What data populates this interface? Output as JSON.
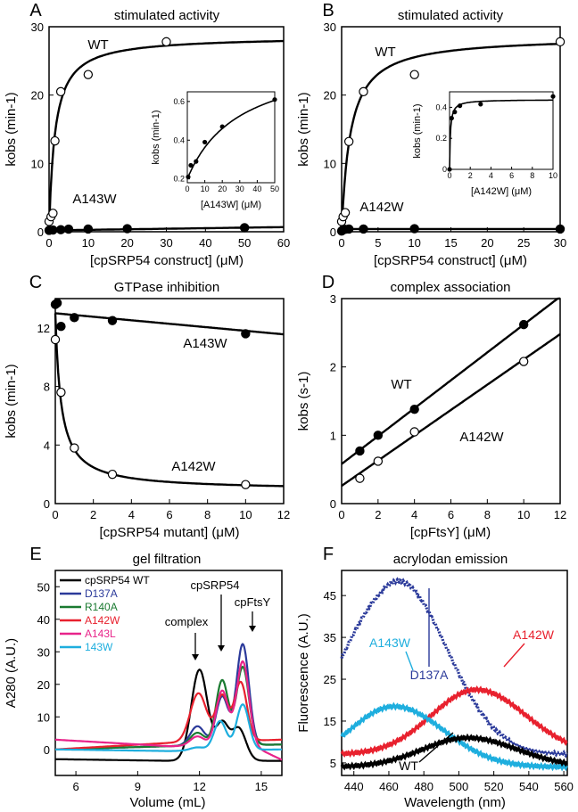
{
  "chart_data": [
    {
      "panel": "A",
      "type": "scatter",
      "title": "stimulated activity",
      "xlabel": "[cpSRP54 construct] (μM)",
      "ylabel": "kobs (min-1)",
      "xlim": [
        0,
        60
      ],
      "ylim": [
        0,
        30
      ],
      "xticks": [
        0,
        10,
        20,
        30,
        40,
        50,
        60
      ],
      "yticks": [
        0,
        10,
        20,
        30
      ],
      "annotations": [
        "WT",
        "A143W"
      ],
      "series": [
        {
          "name": "WT",
          "marker": "open",
          "x": [
            0,
            0.5,
            1,
            1.5,
            3,
            10,
            30
          ],
          "y": [
            1.5,
            2.2,
            2.7,
            13.3,
            20.5,
            23,
            27.8
          ],
          "fit": {
            "model": "hyperbolic",
            "kmax": 28.6,
            "km": 1.5
          }
        },
        {
          "name": "A143W",
          "marker": "filled",
          "x": [
            0,
            1,
            3,
            5,
            10,
            20,
            50
          ],
          "y": [
            0.2,
            0.25,
            0.3,
            0.38,
            0.4,
            0.45,
            0.6
          ],
          "fit": {
            "model": "linear",
            "b": 0.2,
            "m": 0.008
          }
        }
      ],
      "inset": {
        "xlabel": "[A143W] (μM)",
        "ylabel": "kobs (min-1)",
        "xlim": [
          0,
          50
        ],
        "ylim": [
          0.18,
          0.65
        ],
        "xticks": [
          0,
          10,
          20,
          30,
          40,
          50
        ],
        "yticks": [
          0.2,
          0.4,
          0.6
        ],
        "x": [
          0.5,
          2,
          5,
          10,
          20,
          50
        ],
        "y": [
          0.21,
          0.27,
          0.29,
          0.39,
          0.47,
          0.61
        ],
        "fit": {
          "model": "hyperbolic_offset",
          "b": 0.2,
          "kmax": 0.65,
          "km": 30
        }
      }
    },
    {
      "panel": "B",
      "type": "scatter",
      "title": "stimulated activity",
      "xlabel": "[cpSRP54 construct] (μM)",
      "ylabel": "kobs (min-1)",
      "xlim": [
        0,
        30
      ],
      "ylim": [
        0,
        30
      ],
      "xticks": [
        0,
        5,
        10,
        15,
        20,
        25,
        30
      ],
      "yticks": [
        0,
        10,
        20,
        30
      ],
      "annotations": [
        "WT",
        "A142W"
      ],
      "series": [
        {
          "name": "WT",
          "marker": "open",
          "x": [
            0,
            0.2,
            0.5,
            1,
            3,
            10,
            30
          ],
          "y": [
            1.5,
            2.2,
            2.8,
            13.2,
            20.5,
            23,
            27.8
          ],
          "fit": {
            "model": "hyperbolic",
            "kmax": 28.6,
            "km": 1.2
          }
        },
        {
          "name": "A142W",
          "marker": "filled",
          "x": [
            0,
            0.2,
            0.5,
            1,
            3,
            10,
            30
          ],
          "y": [
            0.1,
            0.3,
            0.35,
            0.4,
            0.4,
            0.45,
            0.4
          ],
          "fit": {
            "model": "flat",
            "b": 0.4
          }
        }
      ],
      "inset": {
        "xlabel": "[A142W] (μM)",
        "ylabel": "kobs (min-1)",
        "xlim": [
          0,
          10
        ],
        "ylim": [
          0,
          0.5
        ],
        "xticks": [
          0,
          2,
          4,
          6,
          8,
          10
        ],
        "yticks": [
          0,
          0.2,
          0.4
        ],
        "x": [
          0,
          0.2,
          0.5,
          1,
          3,
          10
        ],
        "y": [
          0.0,
          0.33,
          0.37,
          0.41,
          0.42,
          0.47
        ],
        "fit": {
          "model": "hyperbolic",
          "kmax": 0.45,
          "km": 0.08
        }
      }
    },
    {
      "panel": "C",
      "type": "scatter",
      "title": "GTPase inhibition",
      "xlabel": "[cpSRP54 mutant] (μM)",
      "ylabel": "kobs (min-1)",
      "xlim": [
        0,
        12
      ],
      "ylim": [
        0,
        14
      ],
      "xticks": [
        0,
        2,
        4,
        6,
        8,
        10,
        12
      ],
      "yticks": [
        0,
        4,
        8,
        12
      ],
      "annotations": [
        "A143W",
        "A142W"
      ],
      "series": [
        {
          "name": "A143W",
          "marker": "filled",
          "x": [
            0,
            0.1,
            0.3,
            1,
            3,
            10
          ],
          "y": [
            13.6,
            13.7,
            12.1,
            12.7,
            12.5,
            11.6
          ],
          "fit": {
            "model": "linear",
            "b": 13,
            "m": -0.12
          }
        },
        {
          "name": "A142W",
          "marker": "open",
          "x": [
            0,
            0.3,
            1,
            3,
            10
          ],
          "y": [
            11.2,
            7.6,
            3.8,
            2.0,
            1.3
          ],
          "fit": {
            "model": "inhibition",
            "k0": 13,
            "kinf": 0.9,
            "ki": 0.3
          }
        }
      ]
    },
    {
      "panel": "D",
      "type": "scatter",
      "title": "complex association",
      "xlabel": "[cpFtsY] (μM)",
      "ylabel": "kobs (s-1)",
      "xlim": [
        0,
        12
      ],
      "ylim": [
        0,
        3
      ],
      "xticks": [
        0,
        2,
        4,
        6,
        8,
        10,
        12
      ],
      "yticks": [
        0,
        1,
        2,
        3
      ],
      "annotations": [
        "WT",
        "A142W"
      ],
      "series": [
        {
          "name": "WT",
          "marker": "filled",
          "x": [
            1,
            2,
            4,
            10
          ],
          "y": [
            0.77,
            1.0,
            1.38,
            2.62
          ],
          "fit": {
            "model": "linear",
            "b": 0.58,
            "m": 0.204
          }
        },
        {
          "name": "A142W",
          "marker": "open",
          "x": [
            1,
            2,
            4,
            10
          ],
          "y": [
            0.37,
            0.62,
            1.05,
            2.08
          ],
          "fit": {
            "model": "linear",
            "b": 0.26,
            "m": 0.185
          }
        }
      ]
    },
    {
      "panel": "E",
      "type": "line",
      "title": "gel filtration",
      "xlabel": "Volume (mL)",
      "ylabel": "A280 (A.U.)",
      "xlim": [
        5,
        16
      ],
      "ylim": [
        -8,
        55
      ],
      "xticks": [
        6,
        9,
        12,
        15
      ],
      "yticks": [
        0,
        10,
        20,
        30,
        40,
        50
      ],
      "annotations": [
        "complex",
        "cpSRP54",
        "cpFtsY"
      ],
      "legend": "top-left",
      "series": [
        {
          "name": "cpSRP54 WT",
          "color": "#000000",
          "base": [
            -3,
            -3.5,
            -3.5
          ],
          "peaks": [
            [
              12.0,
              28,
              0.4
            ],
            [
              13.1,
              11,
              0.3
            ],
            [
              13.9,
              10,
              0.35
            ]
          ],
          "tail": 0
        },
        {
          "name": "D137A",
          "color": "#2b3a9a",
          "base": [
            0,
            1,
            1.5
          ],
          "peaks": [
            [
              11.9,
              6,
              0.35
            ],
            [
              13.1,
              15,
              0.3
            ],
            [
              14.1,
              31,
              0.3
            ]
          ],
          "tail": 0
        },
        {
          "name": "R140A",
          "color": "#1a7a30",
          "base": [
            0,
            1,
            1.5
          ],
          "peaks": [
            [
              11.9,
              4,
              0.35
            ],
            [
              13.1,
              20,
              0.3
            ],
            [
              14.1,
              24,
              0.3
            ]
          ],
          "tail": 0
        },
        {
          "name": "A142W",
          "color": "#e8212e",
          "base": [
            0,
            2,
            3
          ],
          "peaks": [
            [
              11.95,
              15,
              0.4
            ],
            [
              13.1,
              14,
              0.3
            ],
            [
              14.0,
              18,
              0.3
            ]
          ],
          "tail": 0
        },
        {
          "name": "A143L",
          "color": "#e8248a",
          "base": [
            3,
            1,
            1
          ],
          "peaks": [
            [
              11.9,
              3,
              0.35
            ],
            [
              13.1,
              17,
              0.3
            ],
            [
              14.1,
              26,
              0.3
            ]
          ],
          "tail": 1
        },
        {
          "name": "143W",
          "color": "#1eaede",
          "base": [
            0,
            -0.5,
            0
          ],
          "peaks": [
            [
              11.9,
              1,
              0.35
            ],
            [
              13.0,
              9,
              0.3
            ],
            [
              14.1,
              14,
              0.3
            ]
          ],
          "tail": 0
        }
      ]
    },
    {
      "panel": "F",
      "type": "scatter",
      "title": "acrylodan emission",
      "xlabel": "Wavelength (nm)",
      "ylabel": "Fluorescence (A.U.)",
      "xlim": [
        433,
        562
      ],
      "ylim": [
        2,
        51
      ],
      "xticks": [
        440,
        460,
        480,
        500,
        520,
        540,
        560
      ],
      "yticks": [
        5,
        15,
        25,
        35,
        45
      ],
      "annotations": [
        "D137A",
        "A142W",
        "A143W",
        "WT"
      ],
      "series": [
        {
          "name": "D137A",
          "color": "#2b3a9a",
          "peak_wavelength": 465,
          "peak_fluorescence": 48.5,
          "end_fluorescence": 7
        },
        {
          "name": "A142W",
          "color": "#e8212e",
          "peak_wavelength": 510,
          "peak_fluorescence": 22.5,
          "end_fluorescence": 7
        },
        {
          "name": "A143W",
          "color": "#1eaede",
          "peak_wavelength": 463,
          "peak_fluorescence": 18.5,
          "end_fluorescence": 4
        },
        {
          "name": "WT",
          "color": "#000000",
          "peak_wavelength": 505,
          "peak_fluorescence": 11,
          "end_fluorescence": 4
        }
      ]
    }
  ]
}
